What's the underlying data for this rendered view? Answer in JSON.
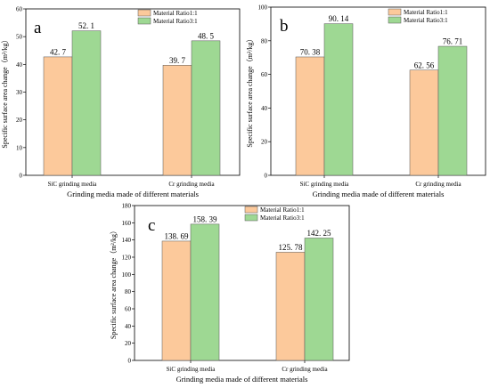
{
  "colors": {
    "series_1": "#fcc99b",
    "series_2": "#9ed893",
    "axis": "#000000"
  },
  "chart_data": [
    {
      "type": "bar",
      "panel_label": "a",
      "categories": [
        "SiC grinding media",
        "Cr grinding media"
      ],
      "series": [
        {
          "name": "Material Ratio1:1",
          "values": [
            42.7,
            39.7
          ],
          "labels": [
            "42. 7",
            "39. 7"
          ]
        },
        {
          "name": "Material Ratio3:1",
          "values": [
            52.1,
            48.5
          ],
          "labels": [
            "52. 1",
            "48. 5"
          ]
        }
      ],
      "xlabel": "Grinding media made of different materials",
      "ylabel": "Specific surface area change（m²/kg）",
      "ylim": [
        0,
        60
      ],
      "yticks": [
        0,
        10,
        20,
        30,
        40,
        50,
        60
      ],
      "legend": "top-right",
      "grid": false
    },
    {
      "type": "bar",
      "panel_label": "b",
      "categories": [
        "SiC grinding media",
        "Cr grinding media"
      ],
      "series": [
        {
          "name": "Material Ratio1:1",
          "values": [
            70.38,
            62.56
          ],
          "labels": [
            "70. 38",
            "62. 56"
          ]
        },
        {
          "name": "Material Ratio3:1",
          "values": [
            90.14,
            76.71
          ],
          "labels": [
            "90. 14",
            "76. 71"
          ]
        }
      ],
      "xlabel": "Grinding media made of different materials",
      "ylabel": "Specific surface area change（m²/kg）",
      "ylim": [
        0,
        100
      ],
      "yticks": [
        0,
        20,
        40,
        60,
        80,
        100
      ],
      "legend": "top-right",
      "grid": false
    },
    {
      "type": "bar",
      "panel_label": "c",
      "categories": [
        "SiC grinding media",
        "Cr grinding media"
      ],
      "series": [
        {
          "name": "Material Ratio1:1",
          "values": [
            138.69,
            125.78
          ],
          "labels": [
            "138. 69",
            "125. 78"
          ]
        },
        {
          "name": "Material Ratio3:1",
          "values": [
            158.39,
            142.25
          ],
          "labels": [
            "158. 39",
            "142. 25"
          ]
        }
      ],
      "xlabel": "Grinding media made of different materials",
      "ylabel": "Specific surface area change（m²/kg）",
      "ylim": [
        0,
        180
      ],
      "yticks": [
        0,
        20,
        40,
        60,
        80,
        100,
        120,
        140,
        160,
        180
      ],
      "legend": "top-right",
      "grid": false
    }
  ]
}
